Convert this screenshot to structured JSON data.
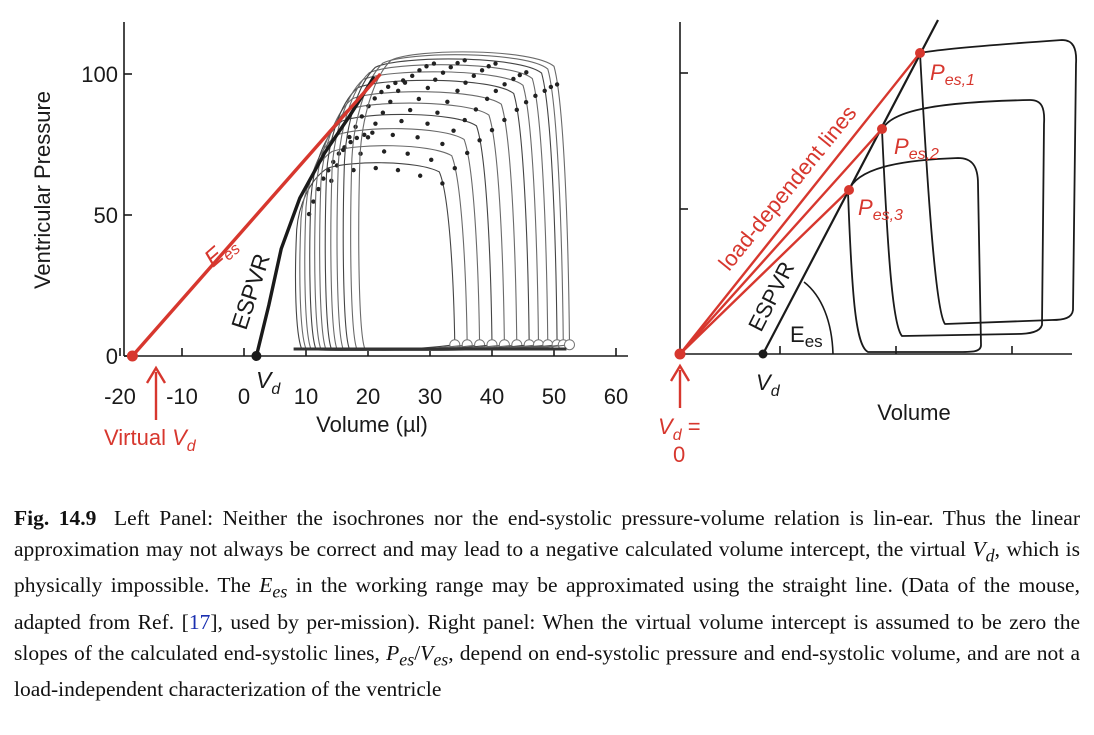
{
  "figure": {
    "left_panel": {
      "ylabel": "Ventricular Pressure",
      "xlabel": "Volume (µl)",
      "y_ticks": [
        "0",
        "50",
        "100"
      ],
      "x_ticks": [
        "-20",
        "-10",
        "0",
        "10",
        "20",
        "30",
        "40",
        "50",
        "60"
      ],
      "labels": {
        "ees": "E",
        "ees_sub": "es",
        "espvr": "ESPVR",
        "vd": "V",
        "vd_sub": "d",
        "virtual_vd": "Virtual ",
        "virtual_vd_v": "V",
        "virtual_vd_sub": "d"
      }
    },
    "right_panel": {
      "xlabel": "Volume",
      "labels": {
        "load_dependent": "load-dependent lines",
        "espvr": "ESPVR",
        "ees": "E",
        "ees_sub": "es",
        "vd": "V",
        "vd_sub": "d",
        "vd0_v": "V",
        "vd0_sub": "d",
        "vd0_eq": " =",
        "vd0_zero": "0",
        "pes1": "P",
        "pes1_sub": "es,1",
        "pes2": "P",
        "pes2_sub": "es,2",
        "pes3": "P",
        "pes3_sub": "es,3"
      }
    },
    "colors": {
      "red": "#d7372e",
      "ink": "#1a1a1a"
    }
  },
  "chart_data": [
    {
      "type": "line",
      "title": "",
      "xlabel": "Volume (µl)",
      "ylabel": "Ventricular Pressure",
      "xlim": [
        -22,
        62
      ],
      "ylim": [
        0,
        115
      ],
      "x_ticks": [
        -20,
        -10,
        0,
        10,
        20,
        30,
        40,
        50,
        60
      ],
      "y_ticks": [
        0,
        50,
        100
      ],
      "series": [
        {
          "points": [
            [
              -18,
              0
            ],
            [
              22,
              100
            ]
          ]
        },
        {
          "points": [
            [
              2,
              0
            ],
            [
              4,
              18
            ],
            [
              6,
              38
            ],
            [
              9,
              56
            ],
            [
              13,
              72
            ],
            [
              17,
              85
            ],
            [
              21,
              99
            ]
          ]
        }
      ],
      "loops": [
        {
          "edv": 34,
          "esv": 8.5,
          "pmax": 68
        },
        {
          "edv": 36,
          "esv": 9.2,
          "pmax": 74
        },
        {
          "edv": 38,
          "esv": 10,
          "pmax": 80
        },
        {
          "edv": 40,
          "esv": 10.8,
          "pmax": 85
        },
        {
          "edv": 42,
          "esv": 11.6,
          "pmax": 89
        },
        {
          "edv": 44,
          "esv": 12.4,
          "pmax": 93
        },
        {
          "edv": 46,
          "esv": 13.3,
          "pmax": 97
        },
        {
          "edv": 47.5,
          "esv": 14.2,
          "pmax": 100
        },
        {
          "edv": 49,
          "esv": 15.2,
          "pmax": 102.5
        },
        {
          "edv": 50.5,
          "esv": 16.2,
          "pmax": 104.5
        },
        {
          "edv": 51.5,
          "esv": 17.4,
          "pmax": 106
        },
        {
          "edv": 52.5,
          "esv": 18.7,
          "pmax": 107
        }
      ],
      "points": [
        {
          "x": -18,
          "y": 0
        },
        {
          "x": 2,
          "y": 0
        }
      ]
    },
    {
      "type": "line",
      "title": "",
      "xlabel": "Volume",
      "ylabel": "",
      "xlim": [
        0,
        100
      ],
      "ylim": [
        0,
        100
      ],
      "series": [
        {
          "points": [
            [
              0,
              0
            ],
            [
              22,
              47
            ]
          ]
        },
        {
          "points": [
            [
              0,
              0
            ],
            [
              28,
              64
            ]
          ]
        },
        {
          "points": [
            [
              0,
              0
            ],
            [
              33,
              83
            ]
          ]
        },
        {
          "points": [
            [
              11,
              0
            ],
            [
              37,
              100
            ]
          ]
        }
      ],
      "points": [
        {
          "x": 22,
          "y": 47
        },
        {
          "x": 28,
          "y": 64
        },
        {
          "x": 33,
          "y": 83
        },
        {
          "x": 0,
          "y": 0
        },
        {
          "x": 11,
          "y": 0
        }
      ]
    }
  ],
  "caption": {
    "label": "Fig. 14.9",
    "p1": "Left Panel: Neither the isochrones nor the end-systolic pressure-volume relation is lin-ear. Thus the linear approximation may not always be correct and may lead to a negative calculated volume intercept, the virtual ",
    "vd_v": "V",
    "vd_sub": "d",
    "p2": ", which is physically impossible. The ",
    "ees_e": "E",
    "ees_sub": "es",
    "p3": " in the working range may be approximated using the straight line. (Data of the mouse, adapted from Ref. [",
    "ref": "17",
    "p4": "], used by per-mission). Right panel: When the virtual volume intercept is assumed to be zero the slopes of the calculated end-systolic lines, ",
    "pes_p": "P",
    "pes_sub": "es",
    "slash": "/",
    "ves_v": "V",
    "ves_sub": "es",
    "p5": ", depend on end-systolic pressure and end-systolic volume, and are not a load-independent characterization of the ventricle"
  }
}
